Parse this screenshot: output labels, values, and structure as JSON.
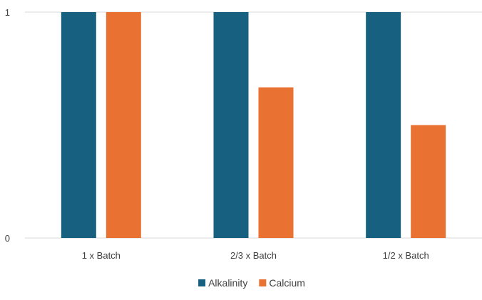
{
  "chart_data": {
    "type": "bar",
    "title": "",
    "xlabel": "",
    "ylabel": "",
    "categories": [
      "1 x Batch",
      "2/3 x Batch",
      "1/2 x Batch"
    ],
    "series": [
      {
        "name": "Alkalinity",
        "color": "#17607f",
        "values": [
          1,
          1,
          1
        ]
      },
      {
        "name": "Calcium",
        "color": "#e97132",
        "values": [
          1,
          0.667,
          0.5
        ]
      }
    ],
    "ylim": [
      0,
      1
    ],
    "yticks": [
      "0",
      "1"
    ],
    "grid": true,
    "legend": "bottom"
  }
}
